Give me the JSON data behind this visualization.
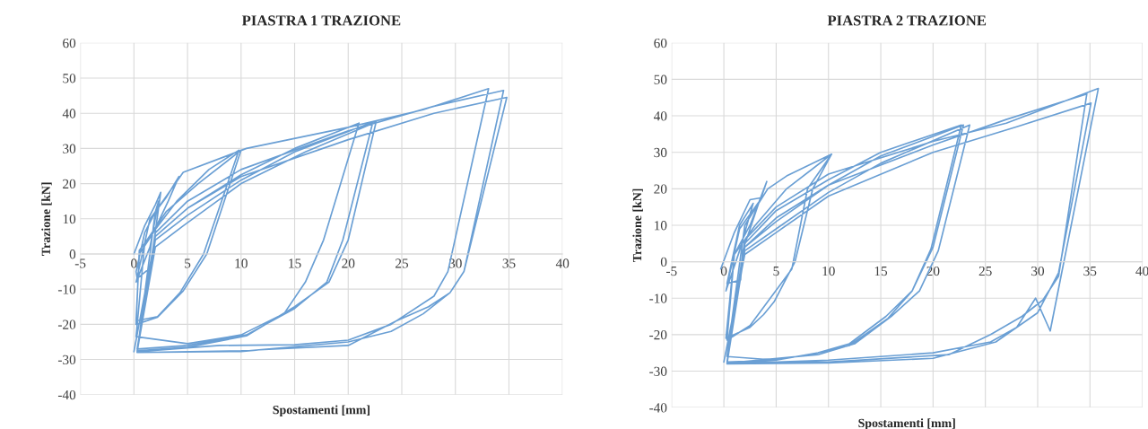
{
  "chart_data": [
    {
      "type": "line",
      "title": "PIASTRA 1 TRAZIONE",
      "xlabel": "Spostamenti [mm]",
      "ylabel": "Trazione [kN]",
      "xlim": [
        -5,
        40
      ],
      "ylim": [
        -40,
        60
      ],
      "xticks": [
        -5,
        0,
        5,
        10,
        15,
        20,
        25,
        30,
        35,
        40
      ],
      "yticks": [
        -40,
        -30,
        -20,
        -10,
        0,
        10,
        20,
        30,
        40,
        50,
        60
      ],
      "grid": true,
      "series": [
        {
          "color": "#6a9fd4",
          "x": [
            0,
            1,
            2,
            2.5,
            1.8,
            1.5,
            0.3,
            0.2,
            1,
            2,
            2.3,
            1.5,
            0.2,
            1.5,
            3,
            4.2,
            3.2,
            1.8,
            0.5,
            0.2,
            2.2,
            4.3,
            6.5,
            9.8,
            7,
            4,
            2,
            0.5,
            0.2,
            2.2,
            4.6,
            6.8,
            10,
            6,
            3,
            1,
            0.2,
            5,
            10,
            14,
            16,
            17.7,
            21,
            15,
            10,
            5,
            2,
            0.3,
            5,
            10.5,
            15,
            18,
            19.5,
            22.3,
            15,
            10,
            5,
            2,
            0.3,
            5,
            10.5,
            15,
            18.2,
            20,
            22.6,
            16,
            10,
            4.6,
            2,
            0.3,
            8,
            15,
            20,
            24,
            28,
            29.3,
            33.1,
            27,
            20,
            10.5,
            4.6,
            2,
            0.3,
            10,
            20,
            24.5,
            27.5,
            29.5,
            30.8,
            34.5,
            28,
            20,
            10,
            5,
            2,
            0.3,
            10,
            20,
            24,
            27,
            29.5,
            30.8,
            34.8,
            28,
            20,
            10,
            5,
            2,
            0
          ],
          "values": [
            0,
            8,
            14,
            17.5,
            2,
            -4,
            -7,
            -5,
            6,
            12,
            15,
            2,
            -8,
            10,
            16,
            22,
            15,
            6,
            0,
            -19,
            -17.8,
            -11,
            0,
            29.5,
            24,
            15,
            7,
            1,
            -20,
            -18,
            -10.5,
            0,
            29.5,
            20,
            12,
            3,
            -23.5,
            -25.5,
            -23,
            -17,
            -8,
            4,
            37.2,
            30,
            22.5,
            13,
            5,
            -27,
            -26,
            -23,
            -15.5,
            -8,
            4,
            37.5,
            29,
            21,
            11,
            4,
            -27.5,
            -26.5,
            -23.3,
            -15,
            -8,
            4,
            37.5,
            29,
            20,
            8,
            2,
            -27.8,
            -26,
            -25.8,
            -24.5,
            -20,
            -12,
            -5,
            47,
            41,
            36,
            30,
            23.2,
            12,
            -28,
            -27.5,
            -26,
            -19,
            -15,
            -11,
            -5,
            46.5,
            42,
            35,
            24,
            15,
            6,
            -28,
            -27.7,
            -25,
            -22,
            -17,
            -11,
            -5,
            44.5,
            40,
            32.5,
            22,
            13,
            5,
            -27.8
          ]
        }
      ]
    },
    {
      "type": "line",
      "title": "PIASTRA 2 TRAZIONE",
      "xlabel": "Spostamenti [mm]",
      "ylabel": "Trazione [kN]",
      "xlim": [
        -5,
        40
      ],
      "ylim": [
        -40,
        60
      ],
      "xticks": [
        -5,
        0,
        5,
        10,
        15,
        20,
        25,
        30,
        35,
        40
      ],
      "yticks": [
        -40,
        -30,
        -20,
        -10,
        0,
        10,
        20,
        30,
        40,
        50,
        60
      ],
      "grid": true,
      "series": [
        {
          "color": "#6a9fd4",
          "x": [
            -0.3,
            1,
            2.5,
            3.5,
            1.8,
            1.6,
            0.3,
            1.5,
            2.8,
            1.5,
            0.2,
            1.5,
            3.5,
            4.1,
            2.5,
            1,
            0.2,
            2.5,
            3.8,
            4.8,
            6.8,
            8.5,
            10.3,
            6,
            3,
            1,
            0.3,
            2.5,
            6.5,
            8,
            10.3,
            6,
            4.2,
            2,
            0.3,
            5,
            9,
            12,
            15.5,
            18,
            19.8,
            22.7,
            15,
            10,
            5,
            2,
            0.3,
            5,
            9,
            12,
            15.7,
            18,
            20,
            22.9,
            15,
            10,
            5,
            2,
            0.3,
            9,
            12.5,
            16,
            18.7,
            20.5,
            23.5,
            15,
            10,
            5,
            2,
            0.3,
            10,
            20,
            25.5,
            28,
            29.8,
            31.2,
            32.3,
            33,
            35.8,
            27,
            20,
            10,
            5,
            2,
            0.3,
            10,
            21.5,
            25.5,
            28.5,
            30.5,
            32,
            34.7,
            27,
            20,
            10,
            5,
            2,
            0.3,
            10,
            20,
            26,
            30,
            32,
            35.1,
            28,
            20,
            10,
            5,
            2,
            0
          ],
          "values": [
            -2,
            8,
            17,
            17.5,
            3,
            -5,
            -6,
            10,
            16,
            3,
            -8,
            9,
            17,
            22,
            10,
            2,
            -21,
            -18,
            -14.5,
            -11,
            0,
            20,
            29.5,
            20,
            10,
            2,
            -21.5,
            -17.5,
            -2,
            20,
            29.5,
            23.5,
            20,
            10,
            -26,
            -27,
            -25,
            -22.5,
            -15,
            -8,
            3.5,
            37.5,
            30,
            22.5,
            14,
            5,
            -27.5,
            -27,
            -25,
            -23,
            -15.5,
            -8,
            4,
            37.5,
            29,
            21,
            12,
            4,
            -27.8,
            -25.5,
            -22.5,
            -15,
            -8,
            3,
            37.5,
            27,
            19,
            9,
            3,
            -28,
            -27,
            -25,
            -22,
            -18,
            -10,
            -19,
            -3,
            7,
            47.5,
            38,
            33,
            24,
            15,
            6,
            -27.5,
            -27.5,
            -25.5,
            -20,
            -15,
            -10.5,
            -4,
            46,
            39,
            32,
            21,
            11,
            4,
            -28,
            -27.8,
            -26.5,
            -22,
            -14,
            -3,
            43.5,
            37,
            30,
            18,
            8,
            2,
            -27.5
          ]
        }
      ]
    }
  ]
}
